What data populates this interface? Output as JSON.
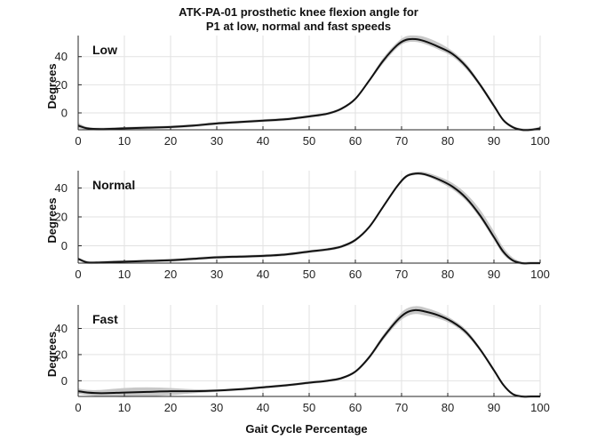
{
  "figure": {
    "title_line1": "ATK-PA-01 prosthetic knee flexion angle for",
    "title_line2": "P1 at low, normal and fast speeds",
    "xlabel": "Gait Cycle Percentage"
  },
  "colors": {
    "mean_line": "#111111",
    "band": "#c8c8c8",
    "grid": "#e2e2e2",
    "axis": "#262626"
  },
  "chart_data": [
    {
      "type": "line",
      "panel_label": "Low",
      "ylabel": "Degrees",
      "xlim": [
        0,
        100
      ],
      "ylim": [
        -12,
        55
      ],
      "xticks": [
        0,
        10,
        20,
        30,
        40,
        50,
        60,
        70,
        80,
        90,
        100
      ],
      "yticks": [
        0,
        20,
        40
      ],
      "grid": true,
      "series": [
        {
          "x": [
            0,
            2,
            5,
            10,
            15,
            20,
            25,
            30,
            35,
            40,
            45,
            50,
            54,
            57,
            60,
            63,
            66,
            69,
            71,
            73,
            75,
            78,
            81,
            84,
            87,
            90,
            92,
            94,
            96,
            98,
            100
          ],
          "y": [
            -9,
            -11,
            -11.5,
            -11,
            -10.5,
            -10,
            -9,
            -7.5,
            -6.5,
            -5.5,
            -4.5,
            -2.5,
            -0.5,
            3,
            10,
            23,
            37,
            48,
            52,
            52.5,
            51,
            47,
            42,
            33,
            20,
            5,
            -5,
            -10,
            -12,
            -12,
            -11
          ],
          "band_upper": [
            -7,
            -10,
            -10.5,
            -10,
            -9.5,
            -9,
            -8,
            -6.5,
            -5.5,
            -4.5,
            -3.5,
            -1.5,
            0.5,
            4,
            11,
            24,
            39,
            50,
            54.5,
            55,
            54,
            50,
            44,
            35,
            21.5,
            6.5,
            -4,
            -9,
            -11,
            -11,
            -10
          ],
          "band_lower": [
            -11,
            -12,
            -12.5,
            -12,
            -11.5,
            -11,
            -10,
            -8.5,
            -7.5,
            -6.5,
            -5.5,
            -3.5,
            -1.5,
            2,
            9,
            22,
            35,
            46,
            50,
            50.5,
            49,
            45,
            40,
            31,
            18.5,
            3.5,
            -6,
            -11,
            -13,
            -13,
            -12
          ]
        }
      ]
    },
    {
      "type": "line",
      "panel_label": "Normal",
      "ylabel": "Degrees",
      "xlim": [
        0,
        100
      ],
      "ylim": [
        -12,
        52
      ],
      "xticks": [
        0,
        10,
        20,
        30,
        40,
        50,
        60,
        70,
        80,
        90,
        100
      ],
      "yticks": [
        0,
        20,
        40
      ],
      "grid": true,
      "series": [
        {
          "x": [
            0,
            2,
            5,
            10,
            15,
            20,
            25,
            30,
            35,
            40,
            45,
            50,
            54,
            57,
            60,
            63,
            66,
            69,
            71,
            73,
            75,
            78,
            81,
            84,
            87,
            90,
            92,
            94,
            96,
            98,
            100
          ],
          "y": [
            -9,
            -11.5,
            -11.5,
            -11,
            -10.5,
            -10,
            -9,
            -8,
            -7.5,
            -7,
            -6,
            -4,
            -2.5,
            -0.5,
            4,
            13,
            27,
            41,
            48,
            50,
            49.5,
            46,
            41,
            33,
            21,
            6,
            -4,
            -10,
            -12,
            -12,
            -12
          ],
          "band_upper": [
            -8,
            -10.5,
            -10.5,
            -10,
            -9.5,
            -9,
            -8,
            -7,
            -6.5,
            -6,
            -5,
            -3,
            -1.5,
            0.5,
            5,
            14,
            28,
            42,
            49,
            51,
            51,
            48,
            43.5,
            36,
            25,
            10,
            -1,
            -8,
            -11,
            -11,
            -11
          ],
          "band_lower": [
            -10,
            -12.5,
            -12.5,
            -12,
            -11.5,
            -11,
            -10,
            -9,
            -8.5,
            -8,
            -7,
            -5,
            -3.5,
            -1.5,
            3,
            12,
            26,
            40,
            47,
            49,
            48.5,
            44.5,
            39,
            31,
            19,
            4,
            -6,
            -11,
            -13,
            -13,
            -13
          ]
        }
      ]
    },
    {
      "type": "line",
      "panel_label": "Fast",
      "ylabel": "Degrees",
      "xlim": [
        0,
        100
      ],
      "ylim": [
        -12,
        58
      ],
      "xticks": [
        0,
        10,
        20,
        30,
        40,
        50,
        60,
        70,
        80,
        90,
        100
      ],
      "yticks": [
        0,
        20,
        40
      ],
      "grid": true,
      "series": [
        {
          "x": [
            0,
            2,
            5,
            10,
            15,
            20,
            25,
            30,
            35,
            40,
            45,
            50,
            54,
            57,
            60,
            63,
            66,
            69,
            71,
            73,
            75,
            78,
            81,
            84,
            87,
            90,
            92,
            94,
            96,
            98,
            100
          ],
          "y": [
            -8,
            -9,
            -9.5,
            -9,
            -8.5,
            -8,
            -8,
            -7.5,
            -6.5,
            -5,
            -3.5,
            -1.5,
            0,
            2,
            7,
            18,
            33,
            46,
            52,
            54,
            53,
            50,
            45,
            37,
            24,
            8,
            -3,
            -10,
            -12,
            -12,
            -12
          ],
          "band_upper": [
            -6,
            -7,
            -7,
            -5.5,
            -5,
            -5.5,
            -6.5,
            -6.5,
            -5.5,
            -4,
            -2.5,
            -0.5,
            1,
            3,
            8,
            19.5,
            35,
            48.5,
            55,
            57,
            56,
            52.5,
            47,
            39,
            25.5,
            9.5,
            -2,
            -9,
            -11,
            -11,
            -11
          ],
          "band_lower": [
            -10,
            -11,
            -12,
            -12.5,
            -12,
            -11,
            -9.5,
            -8.5,
            -7.5,
            -6,
            -4.5,
            -2.5,
            -1,
            1,
            6,
            16.5,
            31,
            43.5,
            49,
            51,
            50,
            47.5,
            43,
            35,
            22.5,
            6.5,
            -4,
            -11,
            -13,
            -13,
            -13
          ]
        }
      ]
    }
  ]
}
